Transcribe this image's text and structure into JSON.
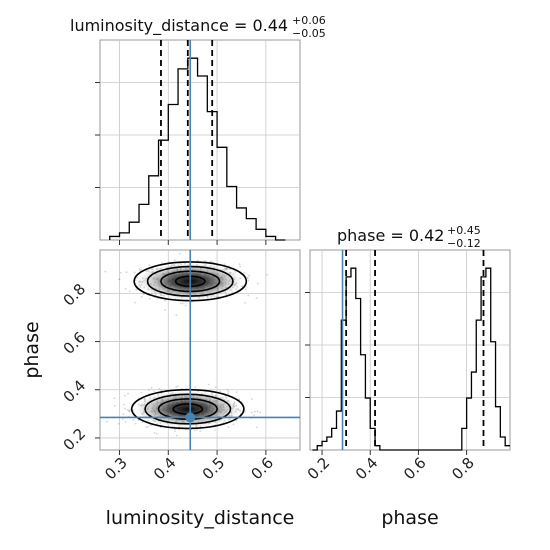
{
  "chart_data": {
    "type": "corner",
    "parameters": [
      "luminosity_distance",
      "phase"
    ],
    "truths": {
      "luminosity_distance": 0.445,
      "phase": 0.285
    },
    "truth_color": "#4682b4",
    "quantiles": {
      "luminosity_distance": [
        0.385,
        0.44,
        0.49
      ],
      "phase": [
        0.3,
        0.42,
        0.87
      ]
    },
    "titles": {
      "luminosity_distance": {
        "label": "luminosity_distance = 0.44",
        "plus": "+0.06",
        "minus": "−0.05"
      },
      "phase": {
        "label": "phase = 0.42",
        "plus": "+0.45",
        "minus": "−0.12"
      }
    },
    "axes": {
      "luminosity_distance": {
        "range": [
          0.26,
          0.67
        ],
        "ticks": [
          "0.3",
          "0.4",
          "0.5",
          "0.6"
        ],
        "tick_values": [
          0.3,
          0.4,
          0.5,
          0.6
        ],
        "label": "luminosity_distance"
      },
      "phase": {
        "range": [
          0.15,
          0.98
        ],
        "ticks": [
          "0.2",
          "0.4",
          "0.6",
          "0.8"
        ],
        "tick_values": [
          0.2,
          0.4,
          0.6,
          0.8
        ],
        "label": "phase"
      }
    },
    "hist_luminosity_distance": {
      "bin_edges": [
        0.28,
        0.3,
        0.32,
        0.34,
        0.36,
        0.38,
        0.4,
        0.42,
        0.44,
        0.46,
        0.48,
        0.5,
        0.52,
        0.54,
        0.56,
        0.58,
        0.6,
        0.62,
        0.64
      ],
      "counts": [
        1,
        2,
        5,
        10,
        18,
        28,
        38,
        48,
        51,
        46,
        36,
        26,
        15,
        9,
        6,
        3,
        1,
        0
      ]
    },
    "hist_phase": {
      "bin_edges": [
        0.16,
        0.18,
        0.2,
        0.22,
        0.24,
        0.26,
        0.28,
        0.3,
        0.32,
        0.34,
        0.36,
        0.38,
        0.4,
        0.42,
        0.44,
        0.46,
        0.48,
        0.5,
        0.52,
        0.54,
        0.56,
        0.58,
        0.6,
        0.62,
        0.64,
        0.66,
        0.68,
        0.7,
        0.72,
        0.74,
        0.76,
        0.78,
        0.8,
        0.82,
        0.84,
        0.86,
        0.88,
        0.9,
        0.92,
        0.94,
        0.96,
        0.98
      ],
      "counts": [
        0,
        1,
        2,
        3,
        5,
        9,
        30,
        40,
        42,
        35,
        22,
        12,
        5,
        1,
        0,
        0,
        0,
        0,
        0,
        0,
        0,
        0,
        0,
        0,
        0,
        0,
        0,
        0,
        0,
        0,
        0,
        5,
        12,
        18,
        30,
        40,
        42,
        25,
        10,
        3,
        1
      ]
    },
    "modes": [
      {
        "ld": 0.445,
        "phase": 0.85,
        "sd_ld": 0.05,
        "sd_phase": 0.035
      },
      {
        "ld": 0.44,
        "phase": 0.32,
        "sd_ld": 0.05,
        "sd_phase": 0.035
      }
    ]
  }
}
